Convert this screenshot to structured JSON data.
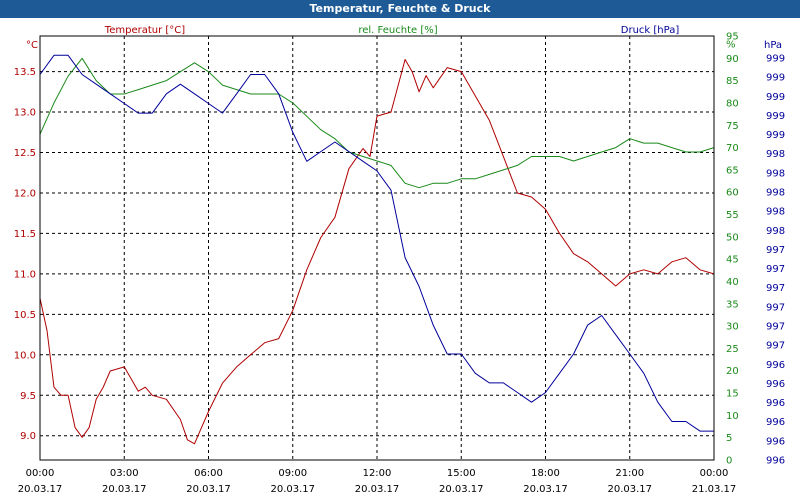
{
  "window": {
    "title": "Temperatur, Feuchte & Druck"
  },
  "chart_data": {
    "type": "line",
    "title": "Temperatur, Feuchte & Druck",
    "grid": true,
    "x_tick_labels": [
      {
        "time": "00:00",
        "date": "20.03.17"
      },
      {
        "time": "03:00",
        "date": "20.03.17"
      },
      {
        "time": "06:00",
        "date": "20.03.17"
      },
      {
        "time": "09:00",
        "date": "20.03.17"
      },
      {
        "time": "12:00",
        "date": "20.03.17"
      },
      {
        "time": "15:00",
        "date": "20.03.17"
      },
      {
        "time": "18:00",
        "date": "20.03.17"
      },
      {
        "time": "21:00",
        "date": "20.03.17"
      },
      {
        "time": "00:00",
        "date": "21.03.17"
      }
    ],
    "x_hours_range": [
      0,
      24
    ],
    "axes": {
      "left": {
        "unit": "°C",
        "ylim": [
          8.7,
          13.94
        ],
        "ticks": [
          "9.0",
          "9.5",
          "10.0",
          "10.5",
          "11.0",
          "11.5",
          "12.0",
          "12.5",
          "13.0",
          "13.5"
        ]
      },
      "right1": {
        "unit": "%",
        "ylim": [
          0,
          95
        ],
        "ticks": [
          "0",
          "5",
          "10",
          "15",
          "20",
          "25",
          "30",
          "35",
          "40",
          "45",
          "50",
          "55",
          "60",
          "65",
          "70",
          "75",
          "80",
          "85",
          "90",
          "95",
          "%"
        ]
      },
      "right2": {
        "unit": "hPa",
        "ylim": [
          995.2,
          999.6
        ],
        "ticks": [
          "996",
          "996",
          "996",
          "996",
          "996",
          "996",
          "997",
          "997",
          "997",
          "997",
          "997",
          "997",
          "998",
          "998",
          "998",
          "998",
          "998",
          "999",
          "999",
          "999",
          "999",
          "999"
        ]
      }
    },
    "series": [
      {
        "name": "Temperatur [°C]",
        "color": "#b00000",
        "axis": "left",
        "x": [
          0,
          0.25,
          0.5,
          0.75,
          1,
          1.25,
          1.5,
          1.75,
          2,
          2.25,
          2.5,
          3,
          3.5,
          3.75,
          4,
          4.5,
          5,
          5.25,
          5.5,
          5.75,
          6,
          6.5,
          7,
          7.5,
          8,
          8.5,
          9,
          9.5,
          10,
          10.5,
          11,
          11.5,
          11.75,
          12,
          12.5,
          13,
          13.25,
          13.5,
          13.75,
          14,
          14.5,
          15,
          15.5,
          16,
          16.5,
          17,
          17.5,
          18,
          18.5,
          19,
          19.5,
          20,
          20.5,
          21,
          21.5,
          22,
          22.5,
          23,
          23.5,
          24
        ],
        "y": [
          10.7,
          10.3,
          9.6,
          9.5,
          9.5,
          9.1,
          8.98,
          9.1,
          9.45,
          9.6,
          9.8,
          9.85,
          9.55,
          9.6,
          9.5,
          9.45,
          9.2,
          8.95,
          8.9,
          9.1,
          9.3,
          9.65,
          9.85,
          10.0,
          10.15,
          10.2,
          10.55,
          11.05,
          11.45,
          11.7,
          12.3,
          12.55,
          12.45,
          12.95,
          13.0,
          13.65,
          13.5,
          13.25,
          13.45,
          13.3,
          13.55,
          13.5,
          13.2,
          12.9,
          12.45,
          12.0,
          11.95,
          11.8,
          11.5,
          11.25,
          11.15,
          11.0,
          10.85,
          11.0,
          11.05,
          11.0,
          11.15,
          11.2,
          11.05,
          11.0
        ]
      },
      {
        "name": "rel. Feuchte [%]",
        "color": "#1a8a1a",
        "axis": "right1",
        "x": [
          0,
          0.5,
          1,
          1.5,
          2,
          2.5,
          3,
          3.5,
          4,
          4.5,
          5,
          5.5,
          6,
          6.5,
          7,
          7.5,
          8,
          8.5,
          9,
          9.5,
          10,
          10.5,
          11,
          11.5,
          12,
          12.5,
          13,
          13.5,
          14,
          14.5,
          15,
          15.5,
          16,
          16.5,
          17,
          17.5,
          18,
          18.5,
          19,
          19.5,
          20,
          20.5,
          21,
          21.5,
          22,
          22.5,
          23,
          23.5,
          24
        ],
        "y": [
          73,
          80,
          86,
          90,
          85,
          82,
          82,
          83,
          84,
          85,
          87,
          89,
          87,
          84,
          83,
          82,
          82,
          82,
          80,
          77,
          74,
          72,
          69,
          68,
          67,
          66,
          62,
          61,
          62,
          62,
          63,
          63,
          64,
          65,
          66,
          68,
          68,
          68,
          67,
          68,
          69,
          70,
          72,
          71,
          71,
          70,
          69,
          69,
          70
        ]
      },
      {
        "name": "Druck [hPa]",
        "color": "#00009a",
        "axis": "right2",
        "x": [
          0,
          0.5,
          1,
          1.5,
          2,
          2.5,
          3,
          3.5,
          4,
          4.5,
          5,
          5.5,
          6,
          6.5,
          7,
          7.5,
          8,
          8.5,
          9,
          9.5,
          10,
          10.5,
          11,
          11.5,
          12,
          12.5,
          13,
          13.5,
          14,
          14.5,
          15,
          15.5,
          16,
          16.5,
          17,
          17.5,
          18,
          18.5,
          19,
          19.5,
          20,
          20.5,
          21,
          21.5,
          22,
          22.5,
          23,
          23.5,
          24
        ],
        "y": [
          999.2,
          999.4,
          999.4,
          999.2,
          999.1,
          999.0,
          998.9,
          998.8,
          998.8,
          999.0,
          999.1,
          999.0,
          998.9,
          998.8,
          999.0,
          999.2,
          999.2,
          999.0,
          998.6,
          998.3,
          998.4,
          998.5,
          998.4,
          998.3,
          998.2,
          998.0,
          997.3,
          997.0,
          996.6,
          996.3,
          996.3,
          996.1,
          996.0,
          996.0,
          995.9,
          995.8,
          995.9,
          996.1,
          996.3,
          996.6,
          996.7,
          996.5,
          996.3,
          996.1,
          995.8,
          995.6,
          995.6,
          995.5,
          995.5
        ]
      }
    ]
  }
}
